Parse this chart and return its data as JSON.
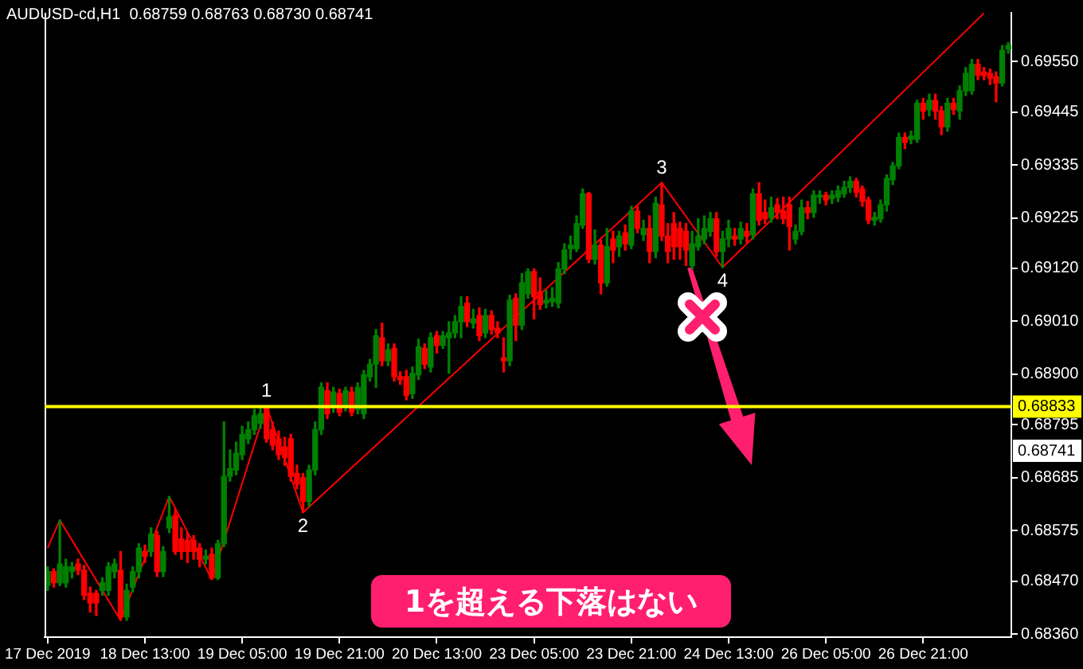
{
  "chart_data": {
    "type": "candlestick",
    "title": "AUDUSD-cd,H1  0.68759 0.68763 0.68730 0.68741",
    "categories": [
      "17 Dec 2019",
      null,
      null,
      null,
      null,
      null,
      null,
      null,
      null,
      null,
      null,
      null,
      null,
      null,
      null,
      null,
      "18 Dec 13:00",
      null,
      null,
      null,
      null,
      null,
      null,
      null,
      null,
      null,
      null,
      null,
      null,
      null,
      null,
      null,
      "19 Dec 05:00",
      null,
      null,
      null,
      null,
      null,
      null,
      null,
      null,
      null,
      null,
      null,
      null,
      null,
      null,
      null,
      "19 Dec 21:00",
      null,
      null,
      null,
      null,
      null,
      null,
      null,
      null,
      null,
      null,
      null,
      null,
      null,
      null,
      null,
      "20 Dec 13:00",
      null,
      null,
      null,
      null,
      null,
      null,
      null,
      null,
      null,
      null,
      null,
      null,
      null,
      null,
      null,
      "23 Dec 05:00",
      null,
      null,
      null,
      null,
      null,
      null,
      null,
      null,
      null,
      null,
      null,
      null,
      null,
      null,
      null,
      "23 Dec 21:00",
      null,
      null,
      null,
      null,
      null,
      null,
      null,
      null,
      null,
      null,
      null,
      null,
      null,
      null,
      null,
      "24 Dec 13:00",
      null,
      null,
      null,
      null,
      null,
      null,
      null,
      null,
      null,
      null,
      null,
      null,
      null,
      null,
      null,
      "26 Dec 05:00",
      null,
      null,
      null,
      null,
      null,
      null,
      null,
      null,
      null,
      null,
      null,
      null,
      null,
      null,
      null,
      "26 Dec 21:00",
      null,
      null,
      null,
      null,
      null,
      null,
      null,
      null,
      null,
      null,
      null,
      null,
      null,
      null
    ],
    "ohlc": [
      [
        0.68461,
        0.685,
        0.68451,
        0.6849
      ],
      [
        0.6849,
        0.68496,
        0.68458,
        0.68467
      ],
      [
        0.68467,
        0.68597,
        0.68461,
        0.68506
      ],
      [
        0.68467,
        0.68516,
        0.68458,
        0.685
      ],
      [
        0.6849,
        0.68509,
        0.68477,
        0.685
      ],
      [
        0.68506,
        0.68516,
        0.68484,
        0.68493
      ],
      [
        0.68493,
        0.68503,
        0.68432,
        0.68441
      ],
      [
        0.68445,
        0.68458,
        0.68406,
        0.68425
      ],
      [
        0.68445,
        0.68451,
        0.68399,
        0.68425
      ],
      [
        0.68451,
        0.68477,
        0.68441,
        0.68467
      ],
      [
        0.68451,
        0.68509,
        0.68441,
        0.685
      ],
      [
        0.6849,
        0.68516,
        0.68477,
        0.68506
      ],
      [
        0.68493,
        0.68532,
        0.68389,
        0.68396
      ],
      [
        0.68396,
        0.68464,
        0.68389,
        0.68451
      ],
      [
        0.68458,
        0.685,
        0.68448,
        0.6849
      ],
      [
        0.6849,
        0.68548,
        0.68477,
        0.68539
      ],
      [
        0.68532,
        0.68545,
        0.68509,
        0.68522
      ],
      [
        0.68532,
        0.68581,
        0.68522,
        0.68568
      ],
      [
        0.68565,
        0.68574,
        0.6848,
        0.6849
      ],
      [
        0.6849,
        0.68542,
        0.6848,
        0.68532
      ],
      [
        0.68581,
        0.68646,
        0.68571,
        0.68604
      ],
      [
        0.68607,
        0.6862,
        0.68526,
        0.68532
      ],
      [
        0.68558,
        0.68581,
        0.68516,
        0.68532
      ],
      [
        0.68555,
        0.68571,
        0.68509,
        0.68532
      ],
      [
        0.68555,
        0.68565,
        0.68516,
        0.68532
      ],
      [
        0.68539,
        0.68548,
        0.685,
        0.68516
      ],
      [
        0.68516,
        0.68535,
        0.68506,
        0.68522
      ],
      [
        0.68526,
        0.68539,
        0.68474,
        0.68477
      ],
      [
        0.68477,
        0.68555,
        0.68474,
        0.68548
      ],
      [
        0.68548,
        0.68801,
        0.68542,
        0.68688
      ],
      [
        0.68688,
        0.68743,
        0.68678,
        0.68704
      ],
      [
        0.68701,
        0.68759,
        0.68691,
        0.68736
      ],
      [
        0.68733,
        0.68792,
        0.68723,
        0.68775
      ],
      [
        0.68766,
        0.68801,
        0.68756,
        0.68785
      ],
      [
        0.68785,
        0.68827,
        0.68775,
        0.68814
      ],
      [
        0.68798,
        0.68831,
        0.68788,
        0.68818
      ],
      [
        0.68831,
        0.68834,
        0.68759,
        0.68766
      ],
      [
        0.68785,
        0.68801,
        0.68743,
        0.68753
      ],
      [
        0.68766,
        0.68782,
        0.68723,
        0.68733
      ],
      [
        0.68749,
        0.68769,
        0.68711,
        0.68727
      ],
      [
        0.68766,
        0.68775,
        0.68678,
        0.68688
      ],
      [
        0.68694,
        0.68711,
        0.68662,
        0.68672
      ],
      [
        0.68685,
        0.68694,
        0.68613,
        0.68636
      ],
      [
        0.68636,
        0.68711,
        0.68626,
        0.68701
      ],
      [
        0.68701,
        0.68801,
        0.68691,
        0.68785
      ],
      [
        0.68785,
        0.68882,
        0.68775,
        0.68873
      ],
      [
        0.68866,
        0.68882,
        0.68808,
        0.68818
      ],
      [
        0.68831,
        0.68873,
        0.68821,
        0.68863
      ],
      [
        0.6886,
        0.68869,
        0.68814,
        0.68821
      ],
      [
        0.68834,
        0.68873,
        0.68824,
        0.68866
      ],
      [
        0.68863,
        0.68873,
        0.68814,
        0.68821
      ],
      [
        0.68827,
        0.68882,
        0.68818,
        0.68873
      ],
      [
        0.68818,
        0.68908,
        0.68808,
        0.68899
      ],
      [
        0.68895,
        0.68931,
        0.68886,
        0.68921
      ],
      [
        0.68921,
        0.68993,
        0.68873,
        0.6898
      ],
      [
        0.68976,
        0.69006,
        0.68918,
        0.68928
      ],
      [
        0.68928,
        0.68963,
        0.68918,
        0.68951
      ],
      [
        0.68954,
        0.68963,
        0.68886,
        0.68895
      ],
      [
        0.68895,
        0.68905,
        0.68879,
        0.68889
      ],
      [
        0.68895,
        0.68908,
        0.68847,
        0.68856
      ],
      [
        0.6886,
        0.68915,
        0.6885,
        0.68902
      ],
      [
        0.68899,
        0.68973,
        0.68889,
        0.68957
      ],
      [
        0.68954,
        0.68963,
        0.68912,
        0.68921
      ],
      [
        0.68915,
        0.68986,
        0.68905,
        0.68976
      ],
      [
        0.6898,
        0.68989,
        0.68944,
        0.6896
      ],
      [
        0.6896,
        0.68989,
        0.68954,
        0.6898
      ],
      [
        0.68976,
        0.69009,
        0.68902,
        0.68986
      ],
      [
        0.68986,
        0.69022,
        0.68976,
        0.69009
      ],
      [
        0.69009,
        0.69061,
        0.68976,
        0.69041
      ],
      [
        0.69048,
        0.69061,
        0.68999,
        0.69009
      ],
      [
        0.69006,
        0.69035,
        0.68996,
        0.69015
      ],
      [
        0.69022,
        0.69038,
        0.6897,
        0.6898
      ],
      [
        0.68986,
        0.69035,
        0.68976,
        0.69022
      ],
      [
        0.69022,
        0.69032,
        0.68983,
        0.68993
      ],
      [
        0.68996,
        0.69009,
        0.68976,
        0.68986
      ],
      [
        0.68934,
        0.68976,
        0.68905,
        0.68928
      ],
      [
        0.68928,
        0.69064,
        0.68918,
        0.69054
      ],
      [
        0.69058,
        0.69067,
        0.6897,
        0.69002
      ],
      [
        0.69002,
        0.69109,
        0.68993,
        0.6909
      ],
      [
        0.69067,
        0.69119,
        0.69058,
        0.69113
      ],
      [
        0.69113,
        0.69119,
        0.69015,
        0.69061
      ],
      [
        0.69071,
        0.691,
        0.69035,
        0.69045
      ],
      [
        0.69048,
        0.69074,
        0.69038,
        0.69054
      ],
      [
        0.69051,
        0.6908,
        0.69041,
        0.69058
      ],
      [
        0.69048,
        0.69132,
        0.69038,
        0.69119
      ],
      [
        0.69119,
        0.69171,
        0.69109,
        0.69158
      ],
      [
        0.69161,
        0.69187,
        0.69139,
        0.69168
      ],
      [
        0.69161,
        0.69229,
        0.69155,
        0.69213
      ],
      [
        0.6921,
        0.69285,
        0.69203,
        0.69275
      ],
      [
        0.69275,
        0.69278,
        0.69132,
        0.69139
      ],
      [
        0.69139,
        0.692,
        0.69129,
        0.69168
      ],
      [
        0.69168,
        0.69178,
        0.69067,
        0.6909
      ],
      [
        0.6909,
        0.69203,
        0.69083,
        0.69165
      ],
      [
        0.69181,
        0.69197,
        0.69132,
        0.69158
      ],
      [
        0.69165,
        0.69197,
        0.69145,
        0.69187
      ],
      [
        0.69194,
        0.6921,
        0.69158,
        0.69171
      ],
      [
        0.69168,
        0.69249,
        0.69161,
        0.69239
      ],
      [
        0.69239,
        0.69249,
        0.69194,
        0.69203
      ],
      [
        0.6919,
        0.6922,
        0.69178,
        0.69203
      ],
      [
        0.69203,
        0.69229,
        0.69132,
        0.69155
      ],
      [
        0.69155,
        0.69268,
        0.69142,
        0.69255
      ],
      [
        0.69252,
        0.69298,
        0.69178,
        0.69187
      ],
      [
        0.69187,
        0.69213,
        0.69132,
        0.69155
      ],
      [
        0.69213,
        0.69236,
        0.69139,
        0.69165
      ],
      [
        0.69203,
        0.69216,
        0.69139,
        0.69165
      ],
      [
        0.69197,
        0.69213,
        0.69126,
        0.69158
      ],
      [
        0.69126,
        0.69197,
        0.69119,
        0.69171
      ],
      [
        0.69165,
        0.69223,
        0.69158,
        0.69187
      ],
      [
        0.69181,
        0.69229,
        0.69171,
        0.69203
      ],
      [
        0.69197,
        0.69236,
        0.69187,
        0.69223
      ],
      [
        0.69223,
        0.69236,
        0.69145,
        0.69155
      ],
      [
        0.69155,
        0.69197,
        0.69122,
        0.69181
      ],
      [
        0.69181,
        0.6922,
        0.69165,
        0.69203
      ],
      [
        0.69187,
        0.69203,
        0.69168,
        0.69181
      ],
      [
        0.69181,
        0.69216,
        0.69171,
        0.69203
      ],
      [
        0.69197,
        0.69213,
        0.69174,
        0.69187
      ],
      [
        0.6919,
        0.69285,
        0.69181,
        0.69275
      ],
      [
        0.69275,
        0.69298,
        0.6921,
        0.6922
      ],
      [
        0.69236,
        0.69262,
        0.69213,
        0.69223
      ],
      [
        0.69226,
        0.69268,
        0.69216,
        0.69246
      ],
      [
        0.69252,
        0.69265,
        0.69223,
        0.69236
      ],
      [
        0.69239,
        0.69268,
        0.69213,
        0.69223
      ],
      [
        0.69252,
        0.69268,
        0.69158,
        0.69207
      ],
      [
        0.69181,
        0.6921,
        0.69171,
        0.69197
      ],
      [
        0.69197,
        0.69262,
        0.6919,
        0.69246
      ],
      [
        0.69246,
        0.69259,
        0.69223,
        0.69236
      ],
      [
        0.69236,
        0.69281,
        0.69226,
        0.69272
      ],
      [
        0.69268,
        0.69281,
        0.69255,
        0.69272
      ],
      [
        0.69272,
        0.69278,
        0.69252,
        0.69262
      ],
      [
        0.69265,
        0.69281,
        0.69255,
        0.69272
      ],
      [
        0.69268,
        0.69291,
        0.69259,
        0.69281
      ],
      [
        0.69275,
        0.69301,
        0.69268,
        0.69288
      ],
      [
        0.69288,
        0.6931,
        0.69278,
        0.69301
      ],
      [
        0.69301,
        0.69307,
        0.69268,
        0.69278
      ],
      [
        0.69285,
        0.69291,
        0.69249,
        0.69259
      ],
      [
        0.69262,
        0.69268,
        0.69213,
        0.6922
      ],
      [
        0.6922,
        0.69236,
        0.6921,
        0.69226
      ],
      [
        0.69223,
        0.69262,
        0.69216,
        0.69252
      ],
      [
        0.69252,
        0.69314,
        0.69239,
        0.69307
      ],
      [
        0.69304,
        0.6934,
        0.69294,
        0.69333
      ],
      [
        0.69333,
        0.69401,
        0.69327,
        0.69392
      ],
      [
        0.69392,
        0.69401,
        0.69369,
        0.69382
      ],
      [
        0.69388,
        0.69405,
        0.69379,
        0.69395
      ],
      [
        0.69388,
        0.69469,
        0.69382,
        0.69463
      ],
      [
        0.69463,
        0.69473,
        0.6943,
        0.69447
      ],
      [
        0.6945,
        0.69482,
        0.69437,
        0.69469
      ],
      [
        0.69469,
        0.69482,
        0.6943,
        0.69447
      ],
      [
        0.69447,
        0.69456,
        0.69398,
        0.69414
      ],
      [
        0.69414,
        0.69473,
        0.69405,
        0.69463
      ],
      [
        0.69463,
        0.69473,
        0.6944,
        0.6945
      ],
      [
        0.69447,
        0.69499,
        0.6943,
        0.69489
      ],
      [
        0.69489,
        0.69537,
        0.69479,
        0.69525
      ],
      [
        0.69489,
        0.69554,
        0.69482,
        0.69544
      ],
      [
        0.69544,
        0.69554,
        0.69512,
        0.69521
      ],
      [
        0.69528,
        0.69537,
        0.69512,
        0.69521
      ],
      [
        0.69525,
        0.69534,
        0.69502,
        0.69515
      ],
      [
        0.69518,
        0.69528,
        0.69466,
        0.69505
      ],
      [
        0.69505,
        0.69583,
        0.69499,
        0.69573
      ],
      [
        0.69576,
        0.69589,
        0.69567,
        0.69583
      ]
    ],
    "colors": [
      "#008000",
      "#ff0000",
      "#008000",
      "#008000",
      "#008000",
      "#ff0000",
      "#ff0000",
      "#ff0000",
      "#ff0000",
      "#008000",
      "#008000",
      "#008000",
      "#ff0000",
      "#008000",
      "#008000",
      "#008000",
      "#ff0000",
      "#008000",
      "#ff0000",
      "#008000",
      "#008000",
      "#ff0000",
      "#ff0000",
      "#ff0000",
      "#ff0000",
      "#ff0000",
      "#008000",
      "#ff0000",
      "#008000",
      "#008000",
      "#008000",
      "#008000",
      "#008000",
      "#008000",
      "#008000",
      "#008000",
      "#ff0000",
      "#ff0000",
      "#ff0000",
      "#ff0000",
      "#ff0000",
      "#ff0000",
      "#ff0000",
      "#008000",
      "#008000",
      "#008000",
      "#ff0000",
      "#008000",
      "#ff0000",
      "#008000",
      "#ff0000",
      "#008000",
      "#008000",
      "#008000",
      "#008000",
      "#ff0000",
      "#008000",
      "#ff0000",
      "#ff0000",
      "#ff0000",
      "#008000",
      "#008000",
      "#ff0000",
      "#008000",
      "#ff0000",
      "#008000",
      "#008000",
      "#008000",
      "#008000",
      "#ff0000",
      "#008000",
      "#ff0000",
      "#008000",
      "#ff0000",
      "#ff0000",
      "#ff0000",
      "#008000",
      "#ff0000",
      "#008000",
      "#008000",
      "#ff0000",
      "#ff0000",
      "#008000",
      "#008000",
      "#008000",
      "#008000",
      "#008000",
      "#008000",
      "#008000",
      "#ff0000",
      "#008000",
      "#ff0000",
      "#008000",
      "#ff0000",
      "#008000",
      "#ff0000",
      "#008000",
      "#ff0000",
      "#008000",
      "#ff0000",
      "#008000",
      "#ff0000",
      "#ff0000",
      "#ff0000",
      "#ff0000",
      "#ff0000",
      "#008000",
      "#008000",
      "#008000",
      "#008000",
      "#ff0000",
      "#008000",
      "#008000",
      "#ff0000",
      "#008000",
      "#ff0000",
      "#008000",
      "#ff0000",
      "#ff0000",
      "#008000",
      "#ff0000",
      "#ff0000",
      "#ff0000",
      "#008000",
      "#008000",
      "#ff0000",
      "#008000",
      "#008000",
      "#ff0000",
      "#008000",
      "#008000",
      "#008000",
      "#008000",
      "#ff0000",
      "#ff0000",
      "#ff0000",
      "#008000",
      "#008000",
      "#008000",
      "#008000",
      "#008000",
      "#ff0000",
      "#008000",
      "#008000",
      "#ff0000",
      "#008000",
      "#ff0000",
      "#ff0000",
      "#008000",
      "#ff0000",
      "#008000",
      "#008000",
      "#008000",
      "#ff0000",
      "#ff0000",
      "#ff0000",
      "#ff0000",
      "#008000",
      "#008000"
    ],
    "series": [
      {
        "type": "line",
        "color": "#ff0000",
        "values": [
          0.68539,
          null,
          0.68597,
          null,
          null,
          null,
          null,
          null,
          null,
          null,
          null,
          null,
          0.68389,
          null,
          null,
          null,
          null,
          null,
          null,
          null,
          0.68646,
          null,
          null,
          null,
          null,
          null,
          null,
          0.68474,
          null,
          null,
          null,
          null,
          null,
          null,
          null,
          null,
          0.68834,
          null,
          null,
          null,
          null,
          null,
          0.68613,
          null,
          null,
          null,
          null,
          null,
          null,
          null,
          null,
          null,
          null,
          null,
          null,
          null,
          null,
          null,
          null,
          null,
          null,
          null,
          null,
          null,
          null,
          null,
          null,
          null,
          null,
          null,
          null,
          null,
          null,
          null,
          null,
          null,
          null,
          null,
          null,
          null,
          null,
          null,
          null,
          null,
          null,
          null,
          null,
          null,
          null,
          null,
          null,
          null,
          null,
          null,
          null,
          null,
          null,
          null,
          null,
          null,
          null,
          0.69298,
          null,
          null,
          null,
          null,
          null,
          null,
          null,
          null,
          null,
          0.69122,
          null,
          null,
          null,
          null,
          null,
          null,
          null,
          null,
          null,
          null,
          null,
          null,
          null,
          null,
          null,
          null,
          null,
          null,
          null,
          null,
          null,
          null,
          null,
          null,
          null,
          null,
          null,
          null,
          null,
          null,
          null,
          null,
          null,
          null,
          null,
          null,
          null,
          null,
          null,
          null,
          null,
          null,
          0.6965,
          null,
          null,
          null,
          null
        ]
      }
    ],
    "ylim": [
      0.68354,
      0.69651
    ],
    "yticks": [
      {
        "value": 0.6955,
        "label": "0.69550"
      },
      {
        "value": 0.69445,
        "label": "0.69445"
      },
      {
        "value": 0.69335,
        "label": "0.69335"
      },
      {
        "value": 0.69225,
        "label": "0.69225"
      },
      {
        "value": 0.6912,
        "label": "0.69120"
      },
      {
        "value": 0.6901,
        "label": "0.69010"
      },
      {
        "value": 0.689,
        "label": "0.68900"
      },
      {
        "value": 0.68795,
        "label": "0.68795"
      },
      {
        "value": 0.68685,
        "label": "0.68685"
      },
      {
        "value": 0.68575,
        "label": "0.68575"
      },
      {
        "value": 0.6847,
        "label": "0.68470"
      },
      {
        "value": 0.6836,
        "label": "0.68360"
      }
    ],
    "ref_lines": [
      {
        "axis": "y",
        "value": 0.68833,
        "label": "0.68833",
        "color": "#ffff00"
      }
    ],
    "annotations": [
      {
        "text": "0.68741",
        "y": 0.68741
      },
      {
        "text": "1",
        "y": 0.68834
      },
      {
        "text": "2",
        "y": 0.68613
      },
      {
        "text": "3",
        "y": 0.69298
      },
      {
        "text": "4",
        "y": 0.69122
      },
      "1を超える下落はない"
    ],
    "grid": false,
    "legend": false
  }
}
